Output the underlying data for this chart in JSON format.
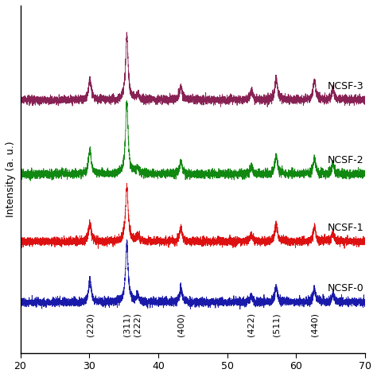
{
  "ylabel": "Intensity (a. u.)",
  "xlim": [
    20,
    70
  ],
  "x_ticks": [
    20,
    30,
    40,
    50,
    60,
    70
  ],
  "samples": [
    "NCSF-0",
    "NCSF-1",
    "NCSF-2",
    "NCSF-3"
  ],
  "colors": [
    "#1a1aaa",
    "#dd1111",
    "#118811",
    "#882255"
  ],
  "offsets": [
    0.0,
    0.18,
    0.38,
    0.6
  ],
  "peak_pos": [
    30.1,
    35.45,
    37.0,
    43.3,
    53.5,
    57.1,
    62.65,
    65.35
  ],
  "peak_labels": [
    "(220)",
    "(311)",
    "(222)",
    "(400)",
    "(422)",
    "(511)",
    "(440)"
  ],
  "label_peak_pos": [
    30.1,
    35.45,
    37.0,
    43.3,
    53.5,
    57.1,
    62.65
  ],
  "noise_amplitude": 0.006,
  "label_fontsize": 8,
  "tick_fontsize": 9,
  "sample_label_fontsize": 9
}
